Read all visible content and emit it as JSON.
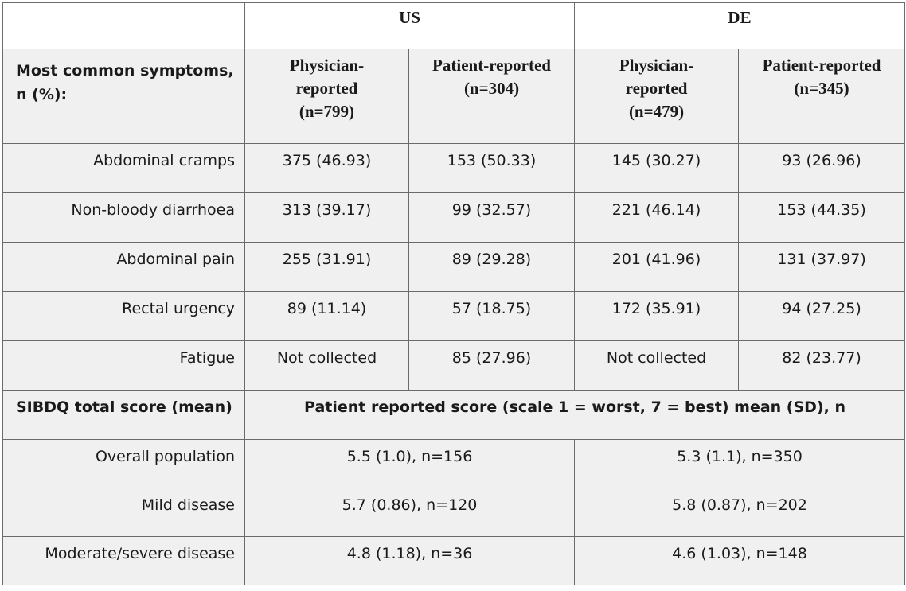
{
  "header": {
    "us": "US",
    "de": "DE"
  },
  "columns": {
    "row_header": "Most common symptoms, n (%):",
    "us_physician": "Physician-reported (n=799)",
    "us_patient": "Patient-reported (n=304)",
    "de_physician": "Physician-reported (n=479)",
    "de_patient": "Patient-reported (n=345)"
  },
  "symptoms": [
    {
      "label": "Abdominal cramps",
      "us_physician": "375 (46.93)",
      "us_patient": "153 (50.33)",
      "de_physician": "145 (30.27)",
      "de_patient": "93 (26.96)"
    },
    {
      "label": "Non-bloody diarrhoea",
      "us_physician": "313 (39.17)",
      "us_patient": "99 (32.57)",
      "de_physician": "221 (46.14)",
      "de_patient": "153 (44.35)"
    },
    {
      "label": "Abdominal pain",
      "us_physician": "255 (31.91)",
      "us_patient": "89 (29.28)",
      "de_physician": "201 (41.96)",
      "de_patient": "131 (37.97)"
    },
    {
      "label": "Rectal urgency",
      "us_physician": "89 (11.14)",
      "us_patient": "57 (18.75)",
      "de_physician": "172 (35.91)",
      "de_patient": "94 (27.25)"
    },
    {
      "label": "Fatigue",
      "us_physician": "Not collected",
      "us_patient": "85 (27.96)",
      "de_physician": "Not collected",
      "de_patient": "82 (23.77)"
    }
  ],
  "sibdq": {
    "label": "SIBDQ total score (mean)",
    "header": "Patient reported score (scale 1 = worst, 7 = best) mean (SD), n",
    "rows": [
      {
        "label": "Overall population",
        "us": "5.5 (1.0), n=156",
        "de": "5.3 (1.1), n=350"
      },
      {
        "label": "Mild disease",
        "us": "5.7 (0.86), n=120",
        "de": "5.8 (0.87), n=202"
      },
      {
        "label": "Moderate/severe disease",
        "us": "4.8 (1.18), n=36",
        "de": "4.6 (1.03), n=148"
      }
    ]
  }
}
